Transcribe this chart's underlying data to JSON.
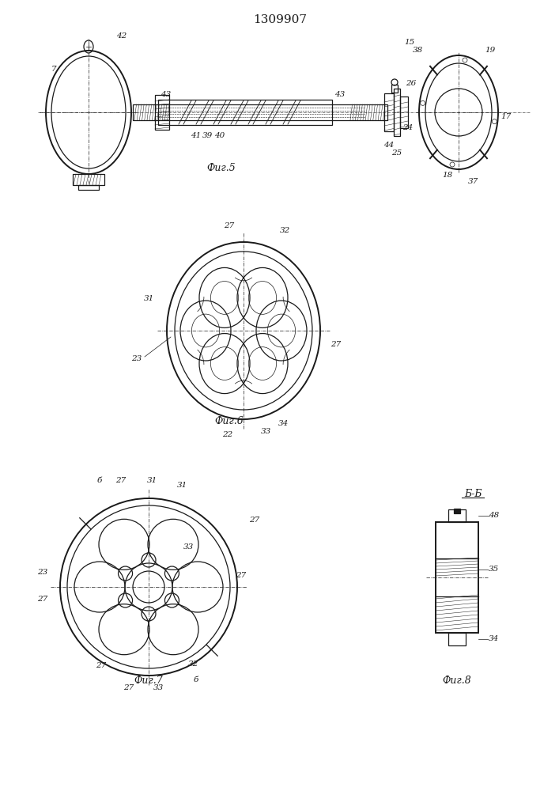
{
  "title": "1309907",
  "bg_color": "#ffffff",
  "line_color": "#1a1a1a",
  "fig5_label": "Фиг.5",
  "fig6_label": "Фиг.6",
  "fig7_label": "Фиг.7",
  "fig8_label": "Фиг.8",
  "fig8b_label": "Б-Б"
}
